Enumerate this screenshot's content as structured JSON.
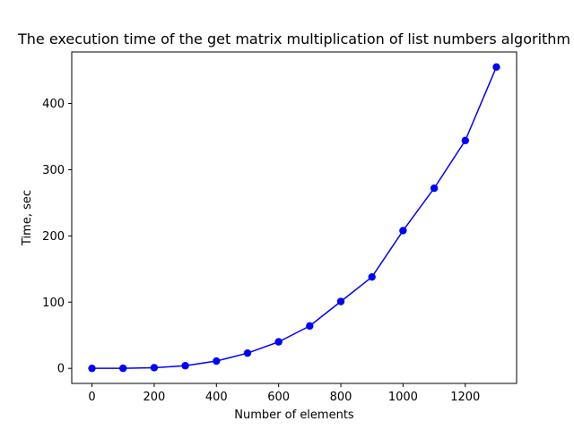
{
  "chart_data": {
    "type": "line",
    "title": "The execution time of the get matrix multiplication of list numbers algorithm",
    "xlabel": "Number of elements",
    "ylabel": "Time, sec",
    "x": [
      0,
      100,
      200,
      300,
      400,
      500,
      600,
      700,
      800,
      900,
      1000,
      1100,
      1200,
      1300
    ],
    "series": [
      {
        "values": [
          0,
          0.1,
          1,
          4,
          11,
          23,
          40,
          64,
          101,
          138,
          208,
          272,
          344,
          455
        ],
        "color": "#0000ff",
        "marker": "circle"
      }
    ],
    "xlim": [
      -65,
      1365
    ],
    "ylim": [
      -22.75,
      477.75
    ],
    "xticks": [
      0,
      200,
      400,
      600,
      800,
      1000,
      1200
    ],
    "yticks": [
      0,
      100,
      200,
      300,
      400
    ],
    "grid": false,
    "legend": "none"
  }
}
